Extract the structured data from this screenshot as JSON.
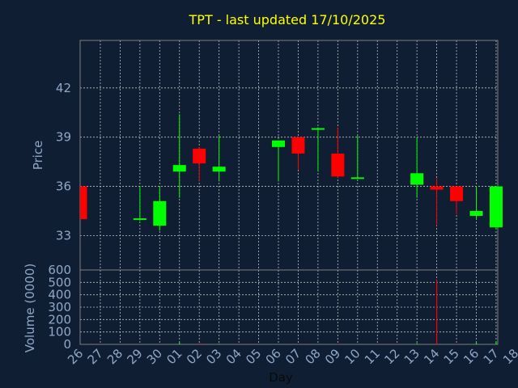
{
  "chart_data": {
    "type": "candlestick",
    "title": "TPT - last updated 17/10/2025",
    "xlabel": "Day",
    "ylabel": "Price",
    "volume_ylabel": "Volume (0000)",
    "x_ticks": [
      "26",
      "27",
      "28",
      "29",
      "30",
      "01",
      "02",
      "03",
      "04",
      "05",
      "06",
      "07",
      "08",
      "09",
      "10",
      "11",
      "12",
      "13",
      "14",
      "15",
      "16",
      "17",
      "18"
    ],
    "ylim": [
      30.9,
      44.9
    ],
    "y_ticks": [
      33,
      36,
      39,
      42
    ],
    "volume_ylim": [
      0,
      600
    ],
    "volume_ticks": [
      0,
      100,
      200,
      300,
      400,
      500,
      600
    ],
    "grid": true,
    "colors": {
      "up": "#00ff00",
      "down": "#ff0000",
      "background": "#0f1e33",
      "title": "#ffff00",
      "axis_text": "#8fa8c8",
      "grid": "#c0c0c0",
      "frame": "#7f7f7f"
    },
    "candles": [
      {
        "day": "26",
        "open": 36.0,
        "high": 36.0,
        "low": 34.0,
        "close": 34.0,
        "volume": 0
      },
      {
        "day": "29",
        "open": 34.0,
        "high": 36.0,
        "low": 33.9,
        "close": 34.0,
        "volume": 0
      },
      {
        "day": "30",
        "open": 33.6,
        "high": 36.0,
        "low": 33.3,
        "close": 35.1,
        "volume": 0
      },
      {
        "day": "01",
        "open": 36.9,
        "high": 40.4,
        "low": 35.3,
        "close": 37.3,
        "volume": 15
      },
      {
        "day": "02",
        "open": 38.3,
        "high": 38.4,
        "low": 36.3,
        "close": 37.4,
        "volume": 10
      },
      {
        "day": "03",
        "open": 36.9,
        "high": 39.1,
        "low": 36.3,
        "close": 37.2,
        "volume": 5
      },
      {
        "day": "06",
        "open": 38.4,
        "high": 38.8,
        "low": 36.3,
        "close": 38.8,
        "volume": 3
      },
      {
        "day": "07",
        "open": 39.0,
        "high": 39.0,
        "low": 37.0,
        "close": 38.0,
        "volume": 3
      },
      {
        "day": "08",
        "open": 39.5,
        "high": 39.6,
        "low": 36.9,
        "close": 39.5,
        "volume": 3
      },
      {
        "day": "09",
        "open": 38.0,
        "high": 39.6,
        "low": 36.5,
        "close": 36.6,
        "volume": 4
      },
      {
        "day": "10",
        "open": 36.5,
        "high": 39.1,
        "low": 36.5,
        "close": 36.5,
        "volume": 2
      },
      {
        "day": "13",
        "open": 36.1,
        "high": 39.0,
        "low": 35.3,
        "close": 36.8,
        "volume": 10
      },
      {
        "day": "14",
        "open": 36.0,
        "high": 36.5,
        "low": 33.6,
        "close": 35.8,
        "volume": 520
      },
      {
        "day": "15",
        "open": 36.0,
        "high": 36.0,
        "low": 34.3,
        "close": 35.1,
        "volume": 5
      },
      {
        "day": "16",
        "open": 34.2,
        "high": 36.0,
        "low": 34.0,
        "close": 34.5,
        "volume": 15
      },
      {
        "day": "17",
        "open": 33.5,
        "high": 36.0,
        "low": 33.4,
        "close": 36.0,
        "volume": 25
      }
    ]
  }
}
